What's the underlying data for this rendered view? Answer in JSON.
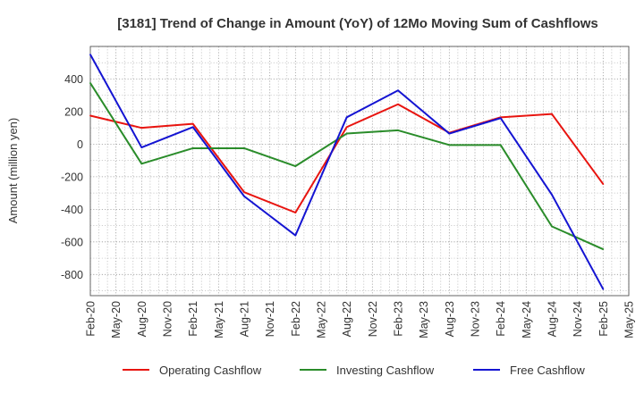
{
  "chart_data": {
    "type": "line",
    "title": "[3181]  Trend of Change in Amount (YoY) of 12Mo Moving Sum of Cashflows",
    "xlabel": "",
    "ylabel": "Amount (million yen)",
    "ylim": [
      -930,
      600
    ],
    "yticks": [
      400,
      200,
      0,
      -200,
      -400,
      -600,
      -800
    ],
    "ytick_labels": [
      "400",
      "200",
      "0",
      "-200",
      "-400",
      "-600",
      "-800"
    ],
    "categories": [
      "Feb-20",
      "May-20",
      "Aug-20",
      "Nov-20",
      "Feb-21",
      "May-21",
      "Aug-21",
      "Nov-21",
      "Feb-22",
      "May-22",
      "Aug-22",
      "Nov-22",
      "Feb-23",
      "May-23",
      "Aug-23",
      "Nov-23",
      "Feb-24",
      "May-24",
      "Aug-24",
      "Nov-24",
      "Feb-25",
      "May-25"
    ],
    "grid": true,
    "legend_position": "bottom",
    "series": [
      {
        "name": "Operating Cashflow",
        "color": "#e8140f",
        "values": [
          175,
          null,
          100,
          null,
          125,
          null,
          -295,
          null,
          -420,
          null,
          105,
          null,
          245,
          null,
          70,
          null,
          165,
          null,
          185,
          null,
          -245,
          null
        ]
      },
      {
        "name": "Investing Cashflow",
        "color": "#2a8c2a",
        "values": [
          375,
          null,
          -120,
          null,
          -25,
          null,
          -25,
          null,
          -135,
          null,
          65,
          null,
          85,
          null,
          -5,
          null,
          -5,
          null,
          -505,
          null,
          -645,
          null
        ]
      },
      {
        "name": "Free Cashflow",
        "color": "#1414d2",
        "values": [
          550,
          null,
          -20,
          null,
          105,
          null,
          -320,
          null,
          -560,
          null,
          165,
          null,
          330,
          null,
          65,
          null,
          160,
          null,
          -310,
          null,
          -890,
          null
        ]
      }
    ]
  }
}
